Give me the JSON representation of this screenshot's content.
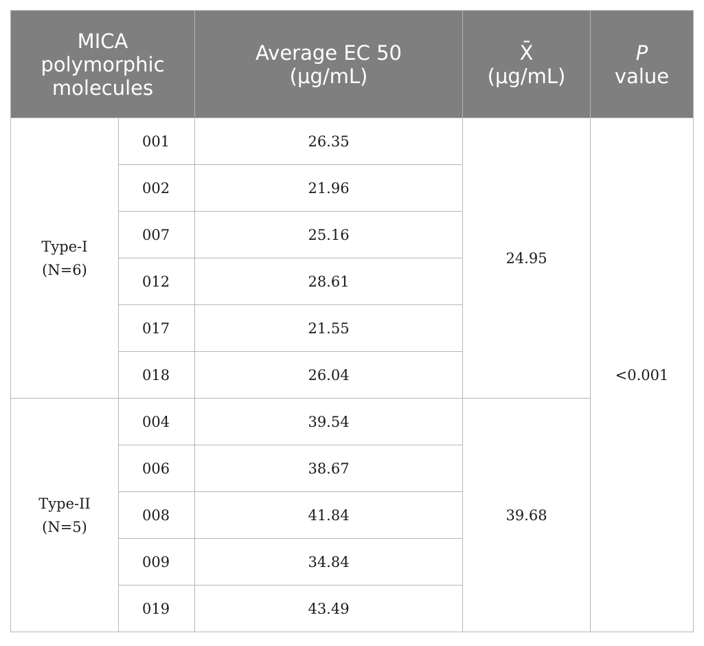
{
  "header": {
    "col1": [
      "MICA",
      "polymorphic",
      "molecules"
    ],
    "col2": [
      "Average EC 50",
      "(μg/mL)"
    ],
    "col3": [
      "X̄",
      "(μg/mL)"
    ],
    "col4_italic": "P",
    "col4": "value"
  },
  "groups": [
    {
      "name": "Type-I",
      "count": "(N=6)",
      "mean": "24.95",
      "rows": [
        {
          "allele": "001",
          "ec50": "26.35"
        },
        {
          "allele": "002",
          "ec50": "21.96"
        },
        {
          "allele": "007",
          "ec50": "25.16"
        },
        {
          "allele": "012",
          "ec50": "28.61"
        },
        {
          "allele": "017",
          "ec50": "21.55"
        },
        {
          "allele": "018",
          "ec50": "26.04"
        }
      ]
    },
    {
      "name": "Type-II",
      "count": "(N=5)",
      "mean": "39.68",
      "rows": [
        {
          "allele": "004",
          "ec50": "39.54"
        },
        {
          "allele": "006",
          "ec50": "38.67"
        },
        {
          "allele": "008",
          "ec50": "41.84"
        },
        {
          "allele": "009",
          "ec50": "34.84"
        },
        {
          "allele": "019",
          "ec50": "43.49"
        }
      ]
    }
  ],
  "p_value": "<0.001"
}
